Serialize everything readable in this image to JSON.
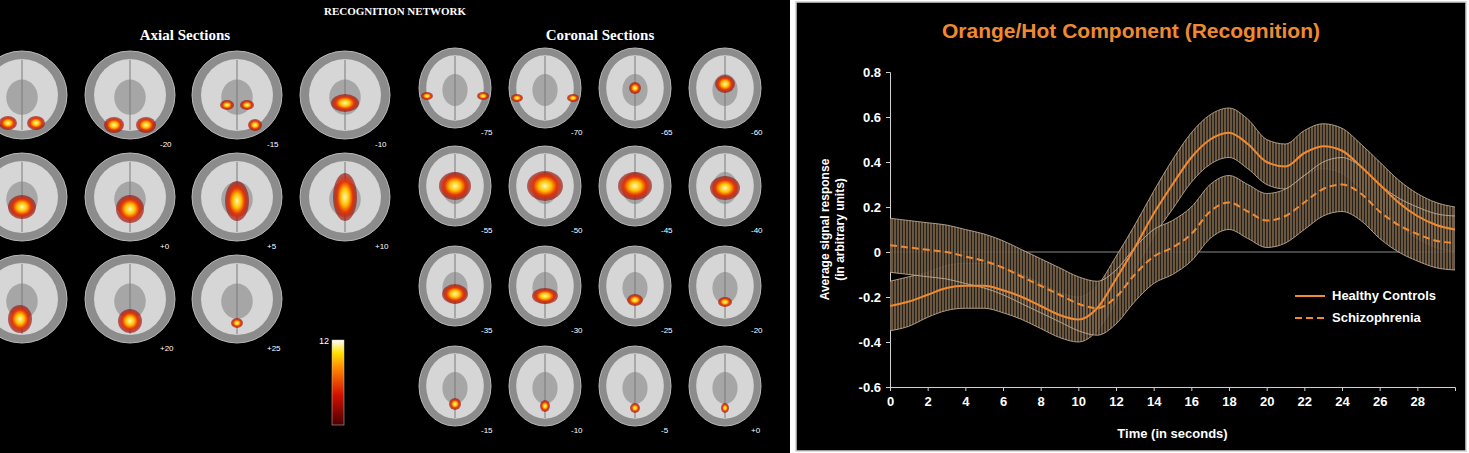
{
  "chart_data": {
    "type": "line",
    "title": "Orange/Hot Component (Recognition)",
    "x_label": "Time (in seconds)",
    "y_label": "Average signal response (in arbitrary units)",
    "x": [
      0,
      1,
      2,
      3,
      4,
      5,
      6,
      7,
      8,
      9,
      10,
      11,
      12,
      13,
      14,
      15,
      16,
      17,
      18,
      19,
      20,
      21,
      22,
      23,
      24,
      25,
      26,
      27,
      28,
      29,
      30
    ],
    "xlim": [
      0,
      30
    ],
    "xticks": [
      0,
      2,
      4,
      6,
      8,
      10,
      12,
      14,
      16,
      18,
      20,
      22,
      24,
      26,
      28
    ],
    "ylim": [
      -0.6,
      0.8
    ],
    "yticks": [
      -0.6,
      -0.4,
      -0.2,
      0,
      0.2,
      0.4,
      0.6,
      0.8
    ],
    "legend": "lower right",
    "series": [
      {
        "name": "Healthy Controls",
        "color": "#f08a30",
        "line_style": "solid",
        "values": [
          -0.24,
          -0.22,
          -0.19,
          -0.16,
          -0.15,
          -0.15,
          -0.17,
          -0.2,
          -0.24,
          -0.28,
          -0.3,
          -0.25,
          -0.12,
          0.02,
          0.17,
          0.3,
          0.42,
          0.5,
          0.53,
          0.48,
          0.4,
          0.38,
          0.44,
          0.47,
          0.45,
          0.38,
          0.3,
          0.22,
          0.16,
          0.12,
          0.1
        ],
        "error": [
          0.11,
          0.11,
          0.1,
          0.1,
          0.1,
          0.1,
          0.1,
          0.1,
          0.1,
          0.1,
          0.1,
          0.1,
          0.1,
          0.1,
          0.1,
          0.11,
          0.11,
          0.11,
          0.11,
          0.11,
          0.1,
          0.1,
          0.1,
          0.1,
          0.1,
          0.1,
          0.1,
          0.1,
          0.1,
          0.1,
          0.1
        ]
      },
      {
        "name": "Schizophrenia",
        "color": "#f08a30",
        "line_style": "dashed",
        "values": [
          0.03,
          0.02,
          0.01,
          0.0,
          -0.02,
          -0.04,
          -0.07,
          -0.11,
          -0.15,
          -0.19,
          -0.23,
          -0.25,
          -0.2,
          -0.1,
          -0.02,
          0.02,
          0.08,
          0.18,
          0.22,
          0.18,
          0.14,
          0.16,
          0.22,
          0.28,
          0.3,
          0.26,
          0.18,
          0.12,
          0.08,
          0.05,
          0.04
        ],
        "error": [
          0.12,
          0.12,
          0.12,
          0.12,
          0.12,
          0.12,
          0.12,
          0.12,
          0.12,
          0.12,
          0.12,
          0.12,
          0.12,
          0.12,
          0.12,
          0.12,
          0.12,
          0.12,
          0.12,
          0.12,
          0.12,
          0.12,
          0.12,
          0.12,
          0.12,
          0.12,
          0.12,
          0.12,
          0.12,
          0.12,
          0.12
        ]
      }
    ]
  },
  "brain_figure": {
    "title": "RECOGNITION NETWORK",
    "axial": {
      "heading": "Axial Sections",
      "slice_labels": [
        null,
        "-20",
        "-15",
        "-10",
        null,
        "+0",
        "+5",
        "+10",
        null,
        "+20",
        "+25"
      ]
    },
    "coronal": {
      "heading": "Coronal Sections",
      "slice_labels": [
        "-75",
        "-70",
        "-65",
        "-60",
        "-55",
        "-50",
        "-45",
        "-40",
        "-35",
        "-30",
        "-25",
        "-20",
        "-15",
        "-10",
        "-5",
        "+0"
      ]
    },
    "colorbar": {
      "range": [
        0,
        12
      ],
      "ticks": [
        12
      ]
    }
  }
}
